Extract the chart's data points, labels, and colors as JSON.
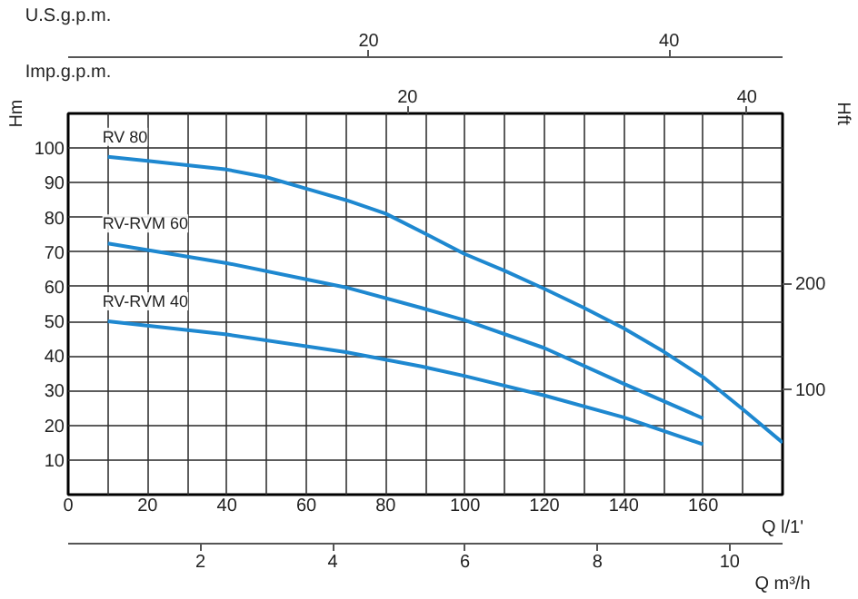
{
  "chart_data": {
    "type": "line",
    "xlabel": "Q l/1'",
    "ylabel": "Hm",
    "y2label": "Hft",
    "x2label": "Imp.g.p.m.",
    "xlim": [
      0,
      180
    ],
    "xticks": [
      0,
      {
        "value": 10,
        "label": null
      },
      20,
      {
        "value": 30,
        "label": null
      },
      40,
      {
        "value": 50,
        "label": null
      },
      60,
      {
        "value": 70,
        "label": null
      },
      80,
      {
        "value": 90,
        "label": null
      },
      100,
      {
        "value": 110,
        "label": null
      },
      120,
      {
        "value": 130,
        "label": null
      },
      140,
      {
        "value": 150,
        "label": null
      },
      160,
      {
        "value": 170,
        "label": null
      }
    ],
    "ylim": [
      0,
      110
    ],
    "yticks": [
      10,
      20,
      30,
      40,
      50,
      60,
      70,
      80,
      90,
      100
    ],
    "y2lim": [
      0,
      360.9
    ],
    "y2ticks": [
      100,
      200
    ],
    "x2lim": [
      0,
      42.1
    ],
    "x2ticks": [
      20,
      40
    ],
    "annotations": [
      "U.S.g.p.m.",
      "20",
      "40",
      "Q m³/h",
      "2",
      "4",
      "6",
      "8",
      "10"
    ],
    "grid": true,
    "line_style": "solid",
    "series": [
      {
        "name": "RV 80",
        "color": "#1e88d0",
        "x": [
          10,
          20,
          30,
          40,
          50,
          60,
          70,
          80,
          90,
          100,
          110,
          120,
          130,
          140,
          150,
          160,
          170,
          180
        ],
        "values": [
          97.5,
          96.3,
          95.1,
          93.8,
          91.6,
          88.3,
          85,
          81.1,
          75.3,
          69.4,
          64.6,
          59.4,
          53.9,
          48,
          41.3,
          33.9,
          24.6,
          15
        ]
      },
      {
        "name": "RV-RVM 60",
        "color": "#1e88d0",
        "x": [
          10,
          40,
          70,
          89,
          100,
          120,
          140,
          160
        ],
        "values": [
          72.5,
          66.8,
          59.8,
          53.9,
          50.3,
          42.3,
          32,
          22
        ]
      },
      {
        "name": "RV-RVM 40",
        "color": "#1e88d0",
        "x": [
          10,
          40,
          70,
          89,
          100,
          120,
          140,
          160
        ],
        "values": [
          50,
          46.2,
          41.1,
          37,
          34.2,
          28.6,
          22.3,
          14.5
        ]
      }
    ]
  }
}
